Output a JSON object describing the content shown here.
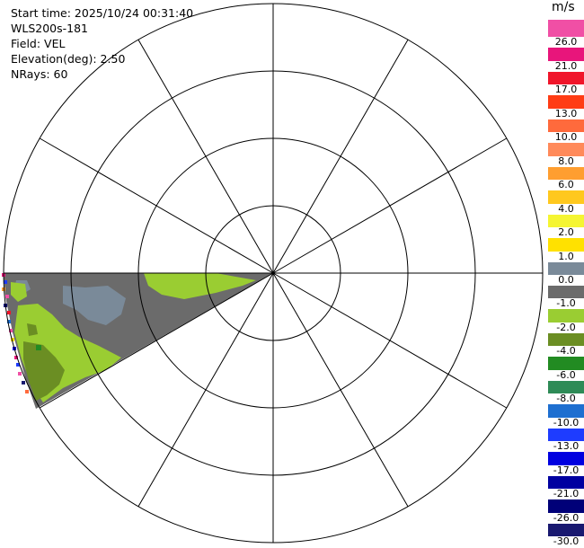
{
  "info": {
    "start_time": "Start time: 2025/10/24 00:31:40",
    "station": "WLS200s-181",
    "field": "Field: VEL",
    "elevation": "Elevation(deg): 2.50",
    "nrays": "NRays: 60"
  },
  "colorbar": {
    "unit": "m/s",
    "segments": [
      {
        "label": "26.0",
        "color": "#f04fa5"
      },
      {
        "label": "21.0",
        "color": "#e8157b"
      },
      {
        "label": "17.0",
        "color": "#f0152a"
      },
      {
        "label": "13.0",
        "color": "#ff3c14"
      },
      {
        "label": "10.0",
        "color": "#ff6a3c"
      },
      {
        "label": "8.0",
        "color": "#ff8a5a"
      },
      {
        "label": "6.0",
        "color": "#ff9e30"
      },
      {
        "label": "4.0",
        "color": "#ffc81e"
      },
      {
        "label": "2.0",
        "color": "#f5f532"
      },
      {
        "label": "1.0",
        "color": "#ffe100"
      },
      {
        "label": "0.0",
        "color": "#7a8a99"
      },
      {
        "label": "-1.0",
        "color": "#6b6b6b"
      },
      {
        "label": "-2.0",
        "color": "#9acd32"
      },
      {
        "label": "-4.0",
        "color": "#6b8e23"
      },
      {
        "label": "-6.0",
        "color": "#228b22"
      },
      {
        "label": "-8.0",
        "color": "#2e8b57"
      },
      {
        "label": "-10.0",
        "color": "#1e6fd0"
      },
      {
        "label": "-13.0",
        "color": "#1e3cff"
      },
      {
        "label": "-17.0",
        "color": "#0000e0"
      },
      {
        "label": "-21.0",
        "color": "#0000a0"
      },
      {
        "label": "-26.0",
        "color": "#000078"
      },
      {
        "label": "-30.0",
        "color": "#191970"
      }
    ]
  }
}
